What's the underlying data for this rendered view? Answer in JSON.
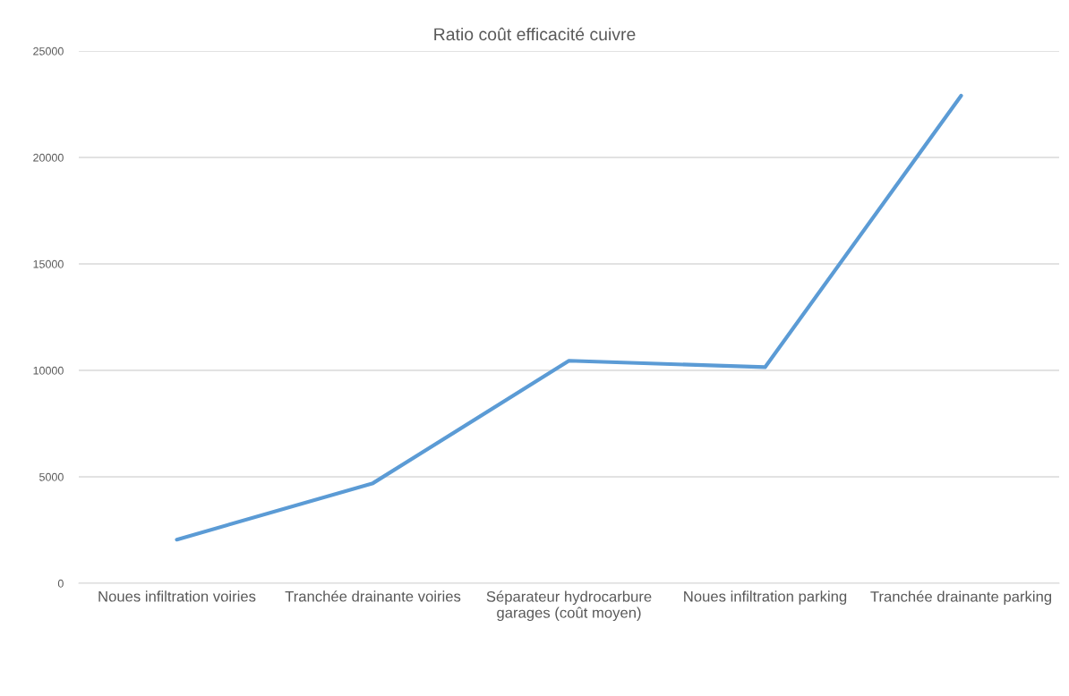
{
  "chart_data": {
    "type": "line",
    "title": "Ratio coût efficacité cuivre",
    "categories": [
      "Noues infiltration voiries",
      "Tranchée drainante voiries",
      "Séparateur hydrocarbure garages (coût moyen)",
      "Noues infiltration parking",
      "Tranchée drainante parking"
    ],
    "series": [
      {
        "color": "#5b9bd5",
        "values": [
          2050,
          4700,
          10450,
          10150,
          22900
        ]
      }
    ],
    "ylim": [
      0,
      25000
    ],
    "yticks": [
      0,
      5000,
      10000,
      15000,
      20000,
      25000
    ],
    "grid": "y",
    "marker": "none",
    "line_style": "solid"
  }
}
